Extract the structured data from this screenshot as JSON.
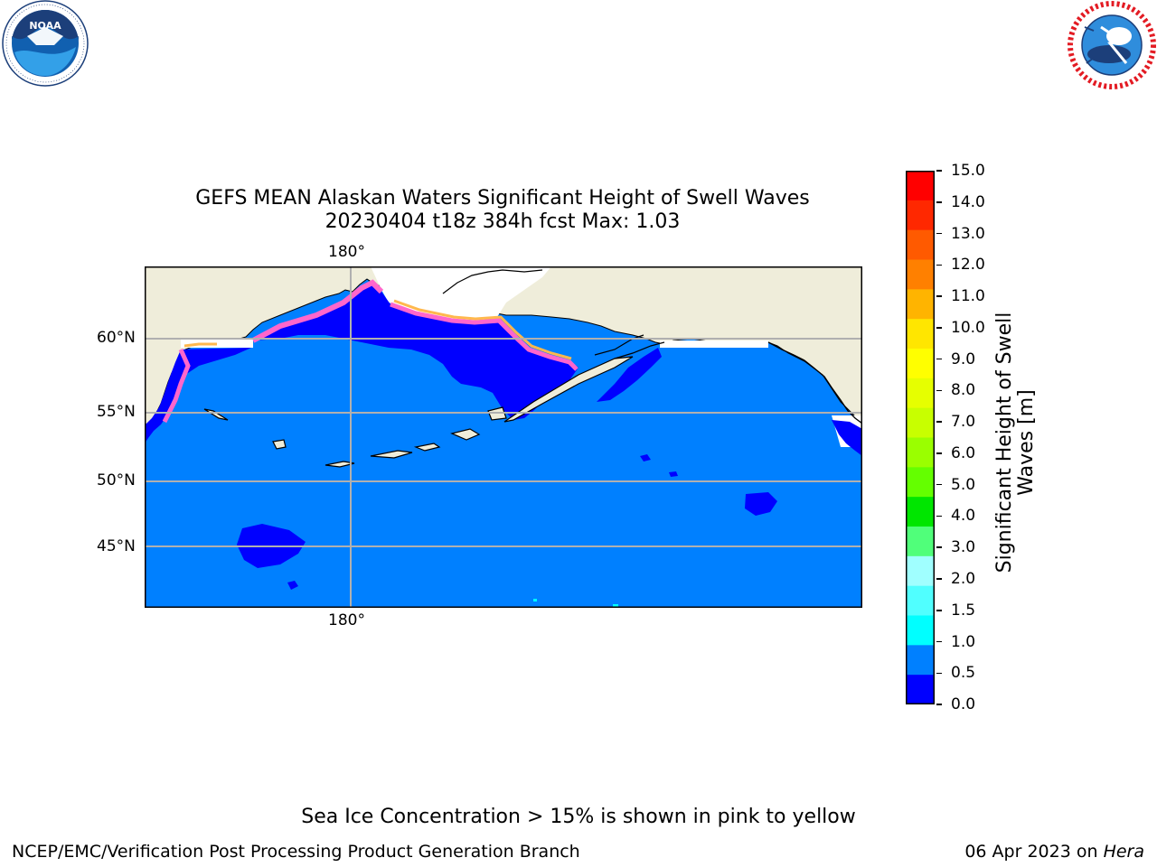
{
  "header": {
    "title_line1": "GEFS MEAN Alaskan Waters Significant Height of Swell Waves",
    "title_line2": "20230404 t18z 384h fcst   Max: 1.03"
  },
  "logos": {
    "noaa": {
      "name": "noaa-logo",
      "text": "NOAA",
      "ring_text": "NATIONAL OCEANIC AND ATMOSPHERIC ADMINISTRATION · U.S. DEPARTMENT OF COMMERCE"
    },
    "nws": {
      "name": "nws-logo",
      "ring_text": "NATIONAL WEATHER SERVICE"
    }
  },
  "map": {
    "lon_label_top": "180°",
    "lon_label_bottom": "180°",
    "lat_labels": [
      "60°N",
      "55°N",
      "50°N",
      "45°N"
    ],
    "colors": {
      "land": "#efedda",
      "ocean": "#0080ff",
      "low_wave": "#0000ff",
      "ice_pink": "#ff66cc",
      "ice_orange": "#ffb84d",
      "ice_white": "#ffffff",
      "grid": "#b0b0b0",
      "coast": "#000000"
    }
  },
  "colorbar": {
    "label": "Significant Height of Swell Waves [m]",
    "label_line1": "Significant Height of Swell",
    "label_line2": "Waves [m]",
    "ticks": [
      "15.0",
      "14.0",
      "13.0",
      "12.0",
      "11.0",
      "10.0",
      "9.0",
      "8.0",
      "7.0",
      "6.0",
      "5.0",
      "4.0",
      "3.0",
      "2.0",
      "1.5",
      "1.0",
      "0.5",
      "0.0"
    ],
    "colors_top_to_bottom": [
      "#ff0000",
      "#ff2800",
      "#ff5a00",
      "#ff8000",
      "#ffb400",
      "#ffe600",
      "#ffff00",
      "#e6ff00",
      "#c8ff00",
      "#9aff00",
      "#64ff00",
      "#00e600",
      "#50ff7a",
      "#a0ffff",
      "#50ffff",
      "#00ffff",
      "#0080ff",
      "#0000ff"
    ]
  },
  "note": "Sea Ice Concentration > 15% is shown in pink to yellow",
  "footer": {
    "left": "NCEP/EMC/Verification Post Processing Product Generation Branch",
    "right_prefix": "06 Apr 2023 on ",
    "right_machine": "Hera"
  }
}
